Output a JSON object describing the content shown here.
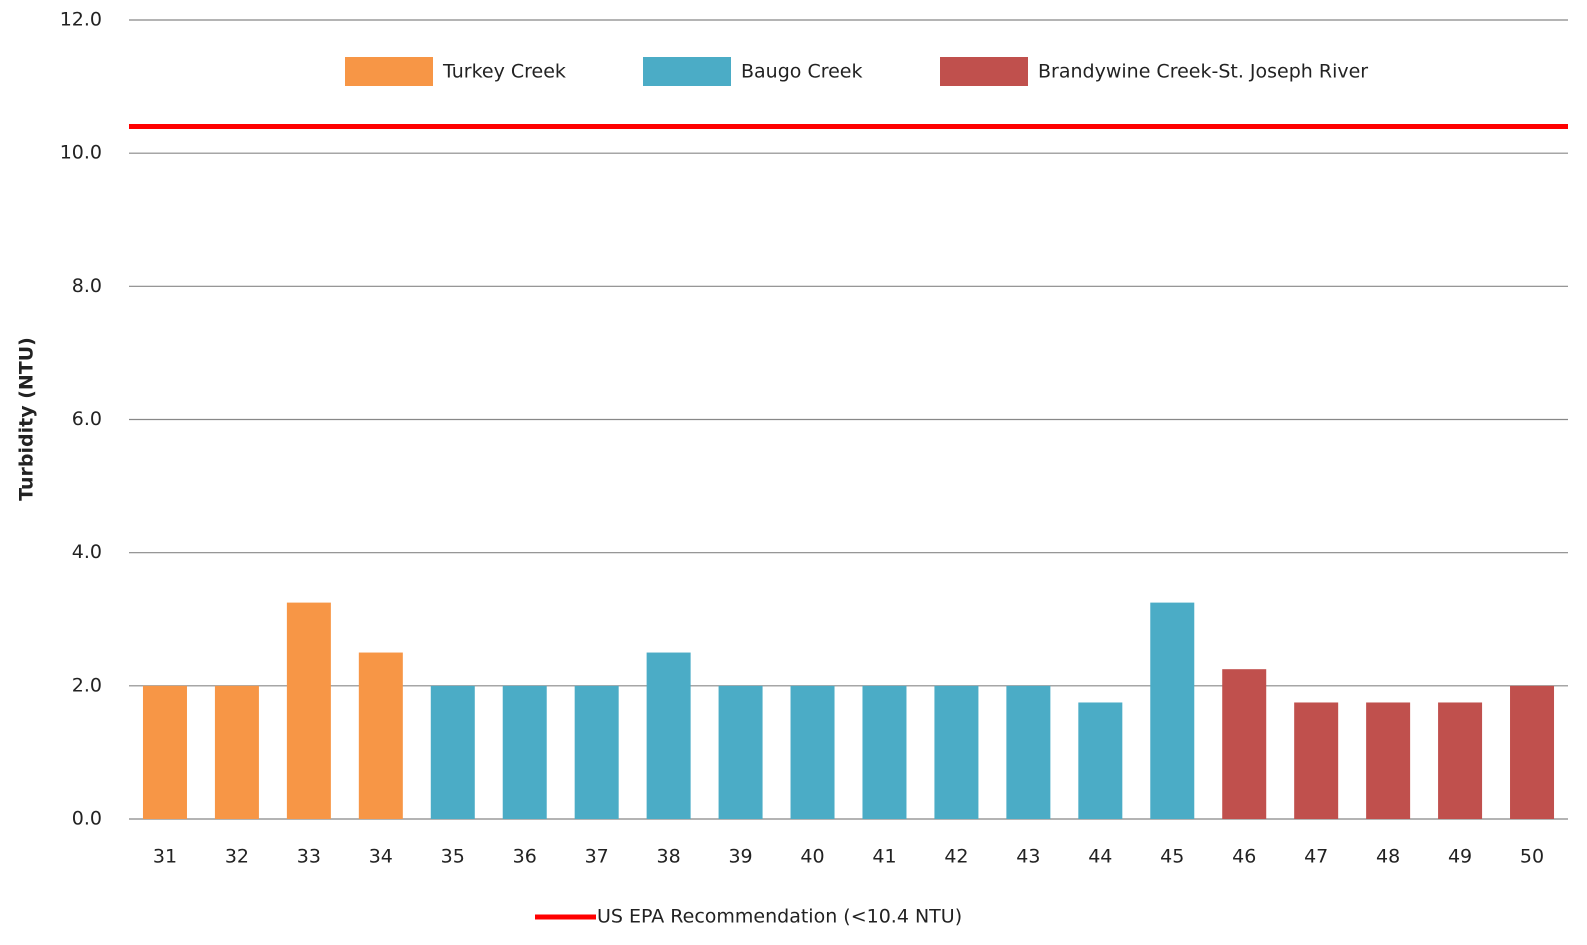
{
  "chart_data": {
    "type": "bar",
    "y_label": "Turbidity (NTU)",
    "categories": [
      "31",
      "32",
      "33",
      "34",
      "35",
      "36",
      "37",
      "38",
      "39",
      "40",
      "41",
      "42",
      "43",
      "44",
      "45",
      "46",
      "47",
      "48",
      "49",
      "50"
    ],
    "series": [
      {
        "name": "Turkey Creek",
        "color": "#F79646",
        "values": [
          2.0,
          2.0,
          3.25,
          2.5,
          null,
          null,
          null,
          null,
          null,
          null,
          null,
          null,
          null,
          null,
          null,
          null,
          null,
          null,
          null,
          null
        ]
      },
      {
        "name": "Baugo Creek",
        "color": "#4BACC6",
        "values": [
          null,
          null,
          null,
          null,
          2.0,
          2.0,
          2.0,
          2.5,
          2.0,
          2.0,
          2.0,
          2.0,
          2.0,
          1.75,
          3.25,
          null,
          null,
          null,
          null,
          null
        ]
      },
      {
        "name": "Brandywine Creek-St. Joseph River",
        "color": "#C0504D",
        "values": [
          null,
          null,
          null,
          null,
          null,
          null,
          null,
          null,
          null,
          null,
          null,
          null,
          null,
          null,
          null,
          2.25,
          1.75,
          1.75,
          1.75,
          2.0
        ]
      }
    ],
    "reference_line": {
      "name": "US EPA Recommendation (<10.4 NTU)",
      "value": 10.4,
      "color": "#FF0000"
    },
    "ylim": [
      0,
      12
    ],
    "yticks": [
      {
        "value": 0,
        "label": "0.0"
      },
      {
        "value": 2,
        "label": "2.0"
      },
      {
        "value": 4,
        "label": "4.0"
      },
      {
        "value": 6,
        "label": "6.0"
      },
      {
        "value": 8,
        "label": "8.0"
      },
      {
        "value": 10,
        "label": "10.0"
      },
      {
        "value": 12,
        "label": "12.0"
      }
    ],
    "grid": true
  }
}
